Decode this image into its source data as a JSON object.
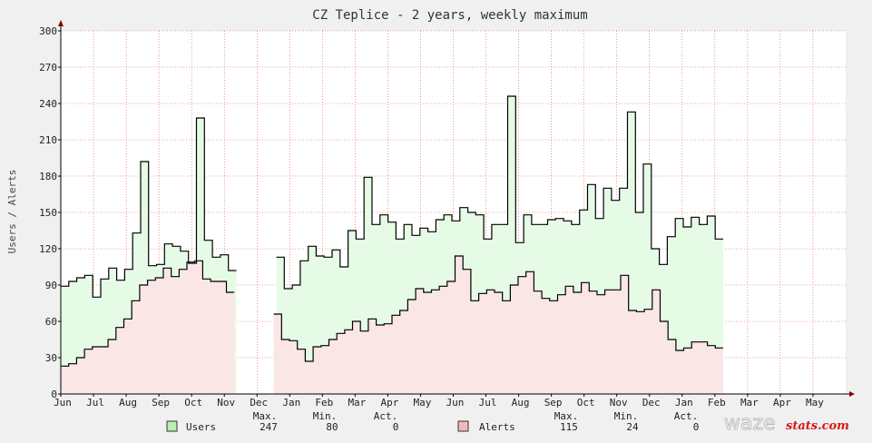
{
  "chart_data": {
    "type": "line",
    "title": "CZ Teplice - 2 years, weekly maximum",
    "ylabel": "Users / Alerts",
    "ylim": [
      0,
      300
    ],
    "yticks": [
      0,
      30,
      60,
      90,
      120,
      150,
      180,
      210,
      240,
      270,
      300
    ],
    "months": [
      "Jun",
      "Jul",
      "Aug",
      "Sep",
      "Oct",
      "Nov",
      "Dec",
      "Jan",
      "Feb",
      "Mar",
      "Apr",
      "May",
      "Jun",
      "Jul",
      "Aug",
      "Sep",
      "Oct",
      "Nov",
      "Dec",
      "Jan",
      "Feb",
      "Mar",
      "Apr",
      "May"
    ],
    "grid": true,
    "legend_position": "bottom",
    "series": [
      {
        "name": "Users",
        "color": "#000000",
        "fill": "#e6fbe6",
        "values": [
          89,
          93,
          96,
          98,
          80,
          95,
          104,
          94,
          103,
          133,
          192,
          106,
          107,
          124,
          122,
          118,
          108,
          228,
          127,
          113,
          115,
          102,
          null,
          null,
          null,
          null,
          null,
          113,
          87,
          90,
          110,
          122,
          114,
          113,
          119,
          105,
          135,
          128,
          179,
          140,
          148,
          142,
          128,
          140,
          131,
          137,
          134,
          144,
          148,
          143,
          154,
          150,
          148,
          128,
          140,
          140,
          246,
          125,
          148,
          140,
          140,
          144,
          145,
          143,
          140,
          152,
          173,
          145,
          170,
          160,
          170,
          233,
          150,
          190,
          120,
          107,
          130,
          145,
          138,
          146,
          140,
          147,
          128
        ],
        "legend": {
          "max_label": "Max.",
          "min_label": "Min.",
          "act_label": "Act.",
          "max": "247",
          "min": "80",
          "act": "0"
        }
      },
      {
        "name": "Alerts",
        "color": "#000000",
        "fill": "#fbe6e6",
        "values": [
          23,
          25,
          30,
          37,
          39,
          39,
          45,
          55,
          62,
          77,
          90,
          94,
          96,
          104,
          97,
          103,
          109,
          110,
          95,
          93,
          93,
          84,
          null,
          null,
          null,
          null,
          null,
          66,
          45,
          44,
          37,
          27,
          39,
          40,
          45,
          50,
          53,
          60,
          52,
          62,
          57,
          58,
          65,
          69,
          78,
          87,
          84,
          86,
          89,
          93,
          114,
          103,
          77,
          83,
          86,
          84,
          77,
          90,
          97,
          101,
          85,
          79,
          77,
          82,
          89,
          84,
          92,
          85,
          82,
          86,
          86,
          98,
          69,
          68,
          70,
          86,
          60,
          45,
          36,
          38,
          43,
          43,
          40,
          38
        ]
      }
    ],
    "legend": [
      {
        "name": "Users",
        "color": "#b8f0b0",
        "max": "247",
        "min": "80",
        "act": "0"
      },
      {
        "name": "Alerts",
        "color": "#f4b8b8",
        "max": "115",
        "min": "24",
        "act": "0"
      }
    ],
    "legend_headers": {
      "max": "Max.",
      "min": "Min.",
      "act": "Act."
    }
  },
  "logo": {
    "text_main": "waze",
    "text_sub": "stats.com"
  }
}
